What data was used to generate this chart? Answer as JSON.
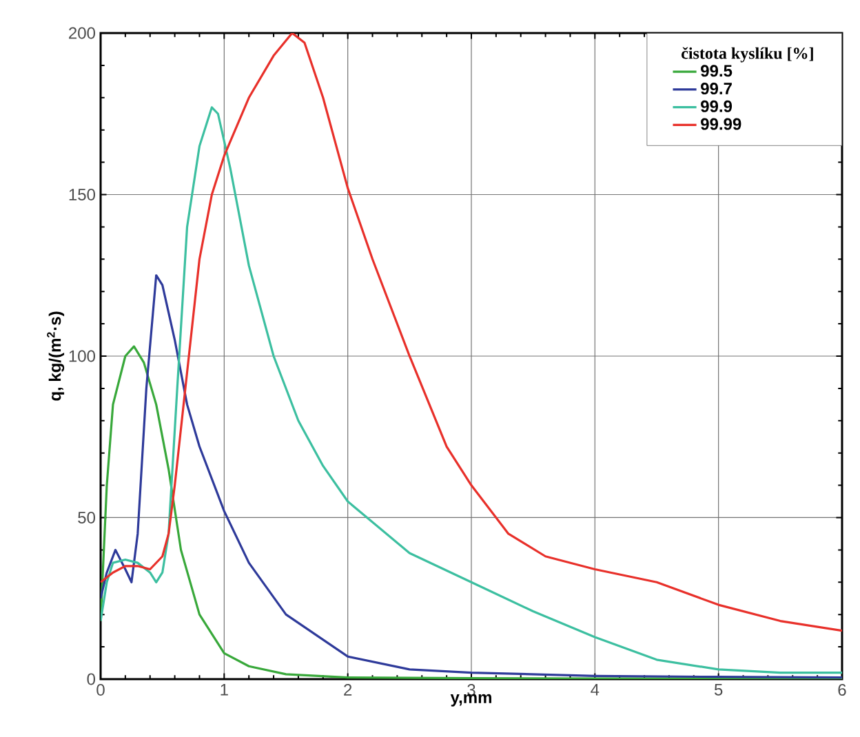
{
  "chart_data": {
    "type": "line",
    "xlabel": "y,mm",
    "ylabel": "q, kg/(m$^{2}$·s)",
    "legend_title": "čistota kyslíku [%]",
    "xlim": [
      0,
      6
    ],
    "ylim": [
      0,
      200
    ],
    "xticks": [
      0,
      1,
      2,
      3,
      4,
      5,
      6
    ],
    "yticks": [
      0,
      50,
      100,
      150,
      200
    ],
    "grid": true,
    "legend": "top right",
    "marker": "none",
    "line_style": "solid",
    "series": [
      {
        "name": "99.5",
        "color": "#38a83a",
        "x": [
          0,
          0.05,
          0.1,
          0.2,
          0.27,
          0.35,
          0.45,
          0.55,
          0.65,
          0.8,
          1.0,
          1.2,
          1.5,
          2,
          3,
          4,
          5,
          6
        ],
        "values": [
          18,
          60,
          85,
          100,
          103,
          98,
          85,
          65,
          40,
          20,
          8,
          4,
          1.5,
          0.5,
          0.3,
          0.2,
          0.2,
          0.2
        ]
      },
      {
        "name": "99.7",
        "color": "#2e3a9a",
        "x": [
          0,
          0.05,
          0.12,
          0.2,
          0.25,
          0.3,
          0.37,
          0.45,
          0.5,
          0.6,
          0.7,
          0.8,
          1.0,
          1.2,
          1.5,
          2.0,
          2.5,
          3,
          4,
          5,
          6
        ],
        "values": [
          25,
          33,
          40,
          34,
          30,
          45,
          90,
          125,
          122,
          105,
          85,
          72,
          52,
          36,
          20,
          7,
          3,
          2,
          1,
          0.7,
          0.5
        ]
      },
      {
        "name": "99.9",
        "color": "#3cbfa0",
        "x": [
          0,
          0.05,
          0.1,
          0.2,
          0.3,
          0.4,
          0.45,
          0.5,
          0.55,
          0.62,
          0.7,
          0.8,
          0.9,
          0.95,
          1.05,
          1.2,
          1.4,
          1.6,
          1.8,
          2.0,
          2.5,
          3.0,
          3.5,
          4.0,
          4.5,
          5,
          5.5,
          6
        ],
        "values": [
          18,
          30,
          36,
          37,
          36,
          33,
          30,
          33,
          45,
          90,
          140,
          165,
          177,
          175,
          158,
          128,
          100,
          80,
          66,
          55,
          39,
          30,
          21,
          13,
          6,
          3,
          2,
          2
        ]
      },
      {
        "name": "99.99",
        "color": "#e8302a",
        "x": [
          0,
          0.1,
          0.2,
          0.3,
          0.4,
          0.5,
          0.55,
          0.6,
          0.7,
          0.8,
          0.9,
          1.0,
          1.2,
          1.4,
          1.55,
          1.65,
          1.8,
          2.0,
          2.2,
          2.5,
          2.8,
          3.0,
          3.3,
          3.6,
          4.0,
          4.5,
          5.0,
          5.5,
          6.0
        ],
        "values": [
          30,
          33,
          35,
          35,
          34,
          38,
          45,
          60,
          95,
          130,
          150,
          162,
          180,
          193,
          200,
          197,
          180,
          152,
          130,
          100,
          72,
          60,
          45,
          38,
          34,
          30,
          23,
          18,
          15
        ]
      }
    ]
  }
}
